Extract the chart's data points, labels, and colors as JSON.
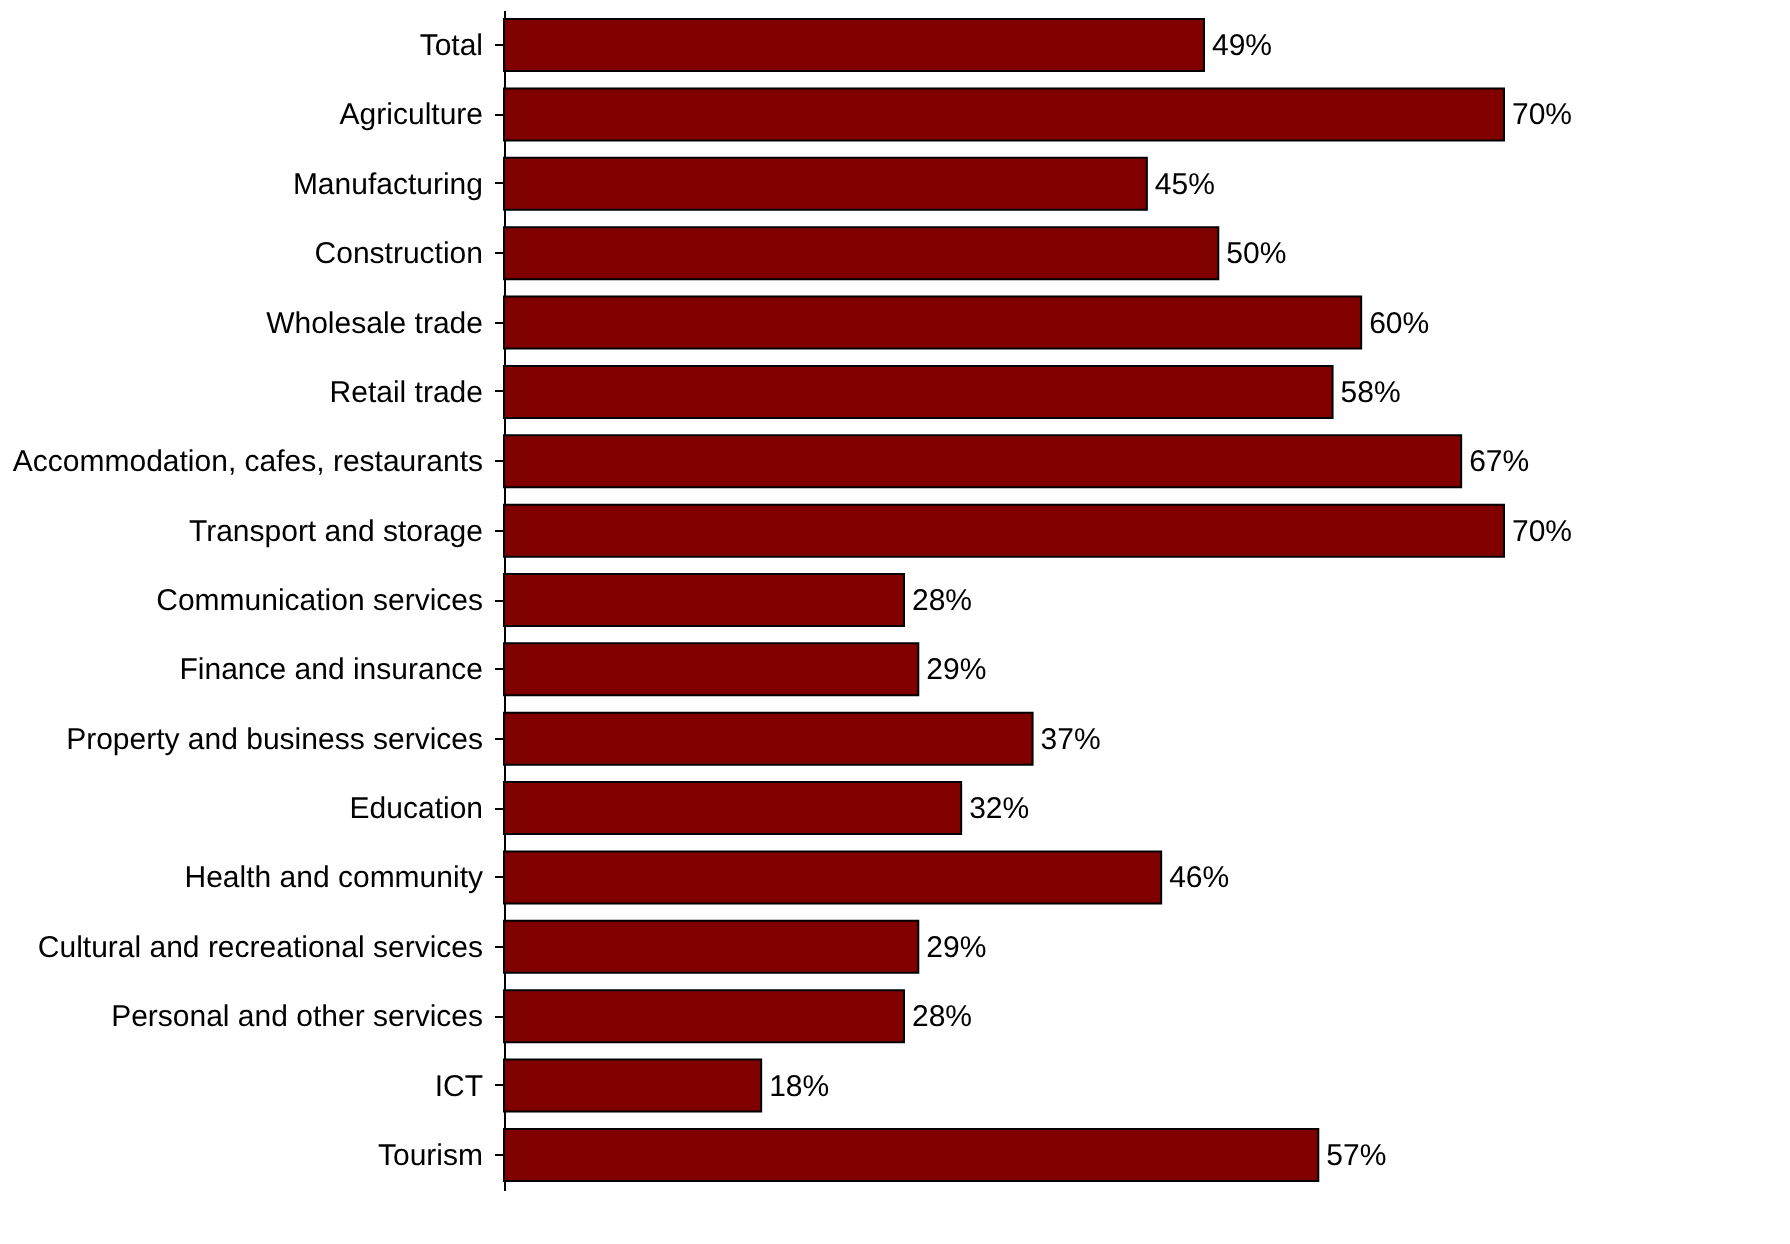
{
  "chart_data": {
    "type": "bar",
    "orientation": "horizontal",
    "value_labels": [
      "49%",
      "70%",
      "45%",
      "50%",
      "60%",
      "58%",
      "67%",
      "70%",
      "28%",
      "29%",
      "37%",
      "32%",
      "46%",
      "29%",
      "28%",
      "18%",
      "57%"
    ],
    "color": "#800000",
    "categories": [
      "Total",
      "Agriculture",
      "Manufacturing",
      "Construction",
      "Wholesale trade",
      "Retail trade",
      "Accommodation, cafes, restaurants",
      "Transport and storage",
      "Communication services",
      "Finance and insurance",
      "Property and business services",
      "Education",
      "Health and community",
      "Cultural and recreational services",
      "Personal and other services",
      "ICT",
      "Tourism"
    ],
    "values": [
      49,
      70,
      45,
      50,
      60,
      58,
      67,
      70,
      28,
      29,
      37,
      32,
      46,
      29,
      28,
      18,
      57
    ]
  }
}
